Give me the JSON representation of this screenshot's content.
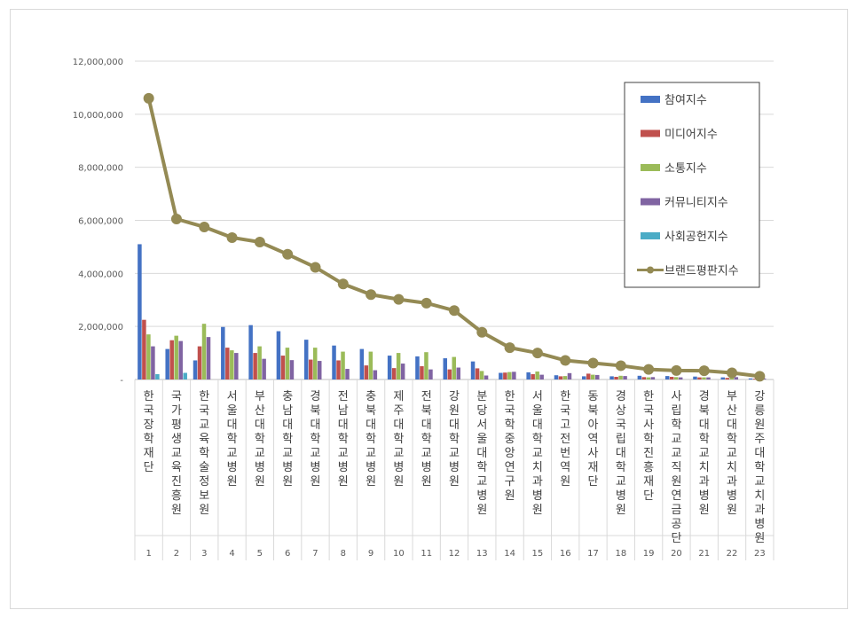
{
  "chart_data": {
    "type": "bar",
    "categories": [
      "한국장학재단",
      "국가평생교육진흥원",
      "한국교육학술정보원",
      "서울대학교병원",
      "부산대학교병원",
      "충남대학교병원",
      "경북대학교병원",
      "전남대학교병원",
      "충북대학교병원",
      "제주대학교병원",
      "전북대학교병원",
      "강원대학교병원",
      "분당서울대학교병원",
      "한국학중앙연구원",
      "서울대학교치과병원",
      "한국고전번역원",
      "동북아역사재단",
      "경상국립대학교병원",
      "한국사학진흥재단",
      "사립학교교직원연금공단",
      "경북대학교치과병원",
      "부산대학교치과병원",
      "강릉원주대학교치과병원"
    ],
    "ranks": [
      "1",
      "2",
      "3",
      "4",
      "5",
      "6",
      "7",
      "8",
      "9",
      "10",
      "11",
      "12",
      "13",
      "14",
      "15",
      "16",
      "17",
      "18",
      "19",
      "20",
      "21",
      "22",
      "23"
    ],
    "series": [
      {
        "name": "참여지수",
        "color": "#4472c4",
        "kind": "bar",
        "values": [
          5100000,
          1150000,
          720000,
          1980000,
          2050000,
          1820000,
          1500000,
          1280000,
          1150000,
          900000,
          870000,
          800000,
          680000,
          250000,
          270000,
          160000,
          120000,
          120000,
          140000,
          130000,
          110000,
          80000,
          40000
        ]
      },
      {
        "name": "미디어지수",
        "color": "#c0504d",
        "kind": "bar",
        "values": [
          2250000,
          1480000,
          1250000,
          1200000,
          1000000,
          900000,
          750000,
          720000,
          530000,
          430000,
          500000,
          380000,
          420000,
          260000,
          200000,
          120000,
          220000,
          100000,
          90000,
          100000,
          80000,
          60000,
          30000
        ]
      },
      {
        "name": "소통지수",
        "color": "#9bbb59",
        "kind": "bar",
        "values": [
          1700000,
          1650000,
          2100000,
          1100000,
          1250000,
          1200000,
          1200000,
          1050000,
          1050000,
          1000000,
          1030000,
          850000,
          320000,
          280000,
          300000,
          130000,
          180000,
          140000,
          80000,
          90000,
          80000,
          70000,
          30000
        ]
      },
      {
        "name": "커뮤니티지수",
        "color": "#8064a2",
        "kind": "bar",
        "values": [
          1250000,
          1450000,
          1600000,
          1000000,
          780000,
          730000,
          700000,
          400000,
          350000,
          600000,
          380000,
          450000,
          150000,
          290000,
          180000,
          240000,
          170000,
          130000,
          90000,
          80000,
          80000,
          90000,
          40000
        ]
      },
      {
        "name": "사회공헌지수",
        "color": "#4bacc6",
        "kind": "bar",
        "values": [
          200000,
          250000,
          0,
          0,
          0,
          0,
          0,
          0,
          0,
          0,
          0,
          0,
          0,
          0,
          0,
          0,
          0,
          0,
          0,
          0,
          0,
          0,
          0
        ]
      },
      {
        "name": "브랜드평판지수",
        "color": "#948a54",
        "kind": "line",
        "values": [
          10600000,
          6050000,
          5750000,
          5350000,
          5180000,
          4720000,
          4230000,
          3600000,
          3200000,
          3020000,
          2880000,
          2600000,
          1780000,
          1200000,
          1000000,
          720000,
          620000,
          520000,
          380000,
          340000,
          330000,
          250000,
          120000
        ]
      }
    ],
    "ylim": [
      0,
      12000000
    ],
    "yticks": [
      "12,000,000",
      "10,000,000",
      "8,000,000",
      "6,000,000",
      "4,000,000",
      "2,000,000",
      "-"
    ],
    "legend_position": "top-right",
    "grid": true
  }
}
